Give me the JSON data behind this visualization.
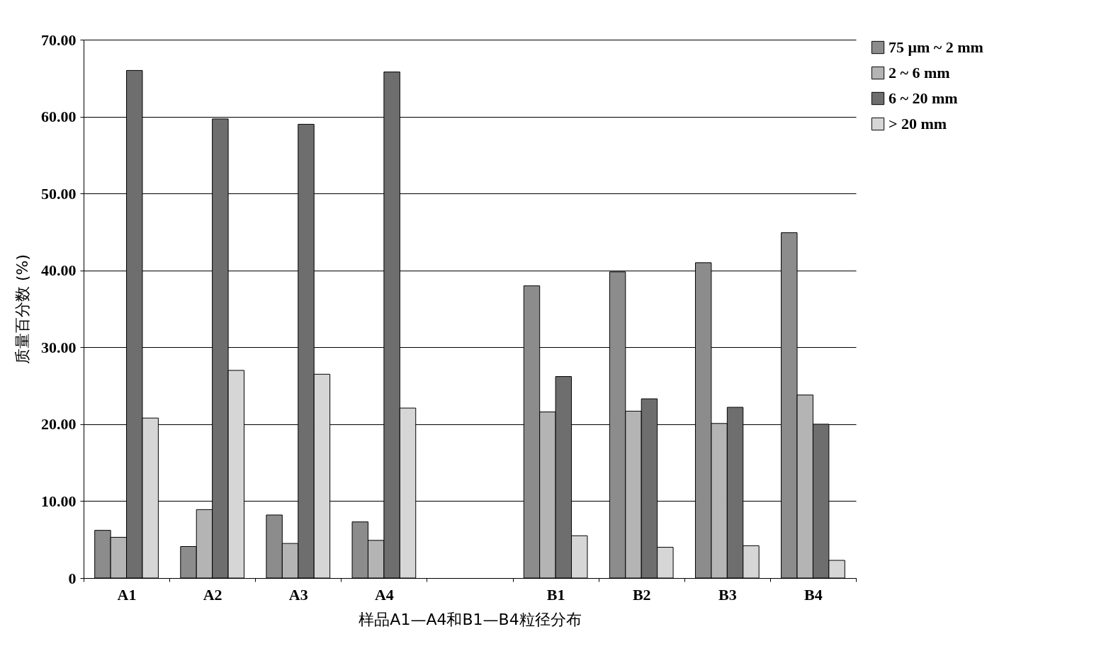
{
  "chart_data": {
    "type": "bar",
    "xlabel": "样品A1—A4和B1—B4粒径分布",
    "ylabel": "质量百分数 (%)",
    "categories": [
      "A1",
      "A2",
      "A3",
      "A4",
      null,
      "B1",
      "B2",
      "B3",
      "B4"
    ],
    "series": [
      {
        "name": "75 μm ~ 2 mm",
        "color": "#8c8c8c",
        "values": [
          6.2,
          4.1,
          8.2,
          7.3,
          null,
          38.0,
          39.8,
          41.0,
          44.9
        ]
      },
      {
        "name": "2 ~ 6 mm",
        "color": "#b4b4b4",
        "values": [
          5.3,
          8.9,
          4.5,
          4.9,
          null,
          21.6,
          21.7,
          20.1,
          23.8
        ]
      },
      {
        "name": "6 ~ 20 mm",
        "color": "#6e6e6e",
        "values": [
          66.0,
          59.7,
          59.0,
          65.8,
          null,
          26.2,
          23.3,
          22.2,
          20.0
        ]
      },
      {
        "name": "> 20 mm",
        "color": "#d6d6d6",
        "values": [
          20.8,
          27.0,
          26.5,
          22.1,
          null,
          5.5,
          4.0,
          4.2,
          2.3
        ]
      }
    ],
    "ylim": [
      0,
      70
    ],
    "yticks": [
      0,
      {
        "value": 10,
        "label": "10.00"
      },
      {
        "value": 20,
        "label": "20.00"
      },
      {
        "value": 30,
        "label": "30.00"
      },
      {
        "value": 40,
        "label": "40.00"
      },
      {
        "value": 50,
        "label": "50.00"
      },
      {
        "value": 60,
        "label": "60.00"
      },
      {
        "value": 70,
        "label": "70.00"
      }
    ],
    "grid": "y",
    "legend": "right"
  }
}
